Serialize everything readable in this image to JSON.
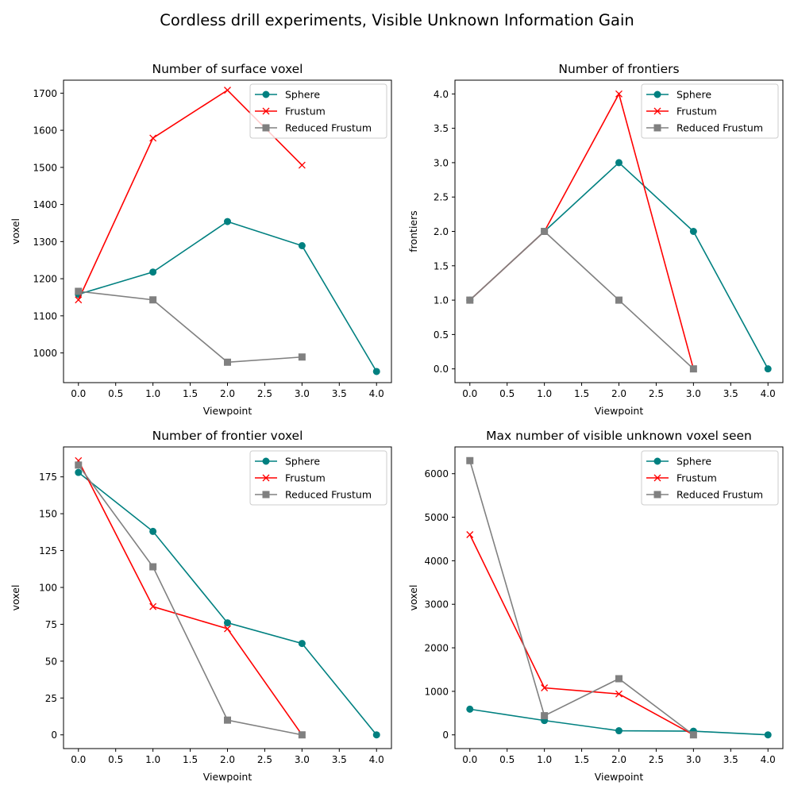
{
  "figure": {
    "title": "Cordless drill experiments, Visible Unknown Information Gain"
  },
  "colors": {
    "Sphere": "#008080",
    "Frustum": "#ff0000",
    "Reduced Frustum": "#808080"
  },
  "chart_data": [
    {
      "type": "line",
      "title": "Number of surface voxel",
      "xlabel": "Viewpoint",
      "ylabel": "voxel",
      "xlim": [
        -0.2,
        4.2
      ],
      "ylim": [
        920,
        1735
      ],
      "xticks": [
        0.0,
        0.5,
        1.0,
        1.5,
        2.0,
        2.5,
        3.0,
        3.5,
        4.0
      ],
      "yticks": [
        1000,
        1100,
        1200,
        1300,
        1400,
        1500,
        1600,
        1700
      ],
      "tick_format": "int",
      "legend_position": "top-right",
      "grid": false,
      "series": [
        {
          "name": "Sphere",
          "marker": "circle",
          "x": [
            0,
            1,
            2,
            3,
            4
          ],
          "y": [
            1158,
            1218,
            1354,
            1289,
            950
          ]
        },
        {
          "name": "Frustum",
          "marker": "x",
          "x": [
            0,
            1,
            2,
            3
          ],
          "y": [
            1143,
            1579,
            1708,
            1506
          ]
        },
        {
          "name": "Reduced Frustum",
          "marker": "square",
          "x": [
            0,
            1,
            2,
            3
          ],
          "y": [
            1166,
            1143,
            975,
            989
          ]
        }
      ]
    },
    {
      "type": "line",
      "title": "Number of frontiers",
      "xlabel": "Viewpoint",
      "ylabel": "frontiers",
      "xlim": [
        -0.2,
        4.2
      ],
      "ylim": [
        -0.2,
        4.2
      ],
      "xticks": [
        0.0,
        0.5,
        1.0,
        1.5,
        2.0,
        2.5,
        3.0,
        3.5,
        4.0
      ],
      "yticks": [
        0.0,
        0.5,
        1.0,
        1.5,
        2.0,
        2.5,
        3.0,
        3.5,
        4.0
      ],
      "tick_format": "1f",
      "legend_position": "top-right",
      "grid": false,
      "series": [
        {
          "name": "Sphere",
          "marker": "circle",
          "x": [
            0,
            1,
            2,
            3,
            4
          ],
          "y": [
            1,
            2,
            3,
            2,
            0
          ]
        },
        {
          "name": "Frustum",
          "marker": "x",
          "x": [
            0,
            1,
            2,
            3
          ],
          "y": [
            1,
            2,
            4,
            0
          ]
        },
        {
          "name": "Reduced Frustum",
          "marker": "square",
          "x": [
            0,
            1,
            2,
            3
          ],
          "y": [
            1,
            2,
            1,
            0
          ]
        }
      ]
    },
    {
      "type": "line",
      "title": "Number of frontier voxel",
      "xlabel": "Viewpoint",
      "ylabel": "voxel",
      "xlim": [
        -0.2,
        4.2
      ],
      "ylim": [
        -9.3,
        195.3
      ],
      "xticks": [
        0.0,
        0.5,
        1.0,
        1.5,
        2.0,
        2.5,
        3.0,
        3.5,
        4.0
      ],
      "yticks": [
        0,
        25,
        50,
        75,
        100,
        125,
        150,
        175
      ],
      "tick_format": "int",
      "legend_position": "top-right",
      "grid": false,
      "series": [
        {
          "name": "Sphere",
          "marker": "circle",
          "x": [
            0,
            1,
            2,
            3,
            4
          ],
          "y": [
            178,
            138,
            76,
            62,
            0
          ]
        },
        {
          "name": "Frustum",
          "marker": "x",
          "x": [
            0,
            1,
            2,
            3
          ],
          "y": [
            186,
            87,
            72,
            0
          ]
        },
        {
          "name": "Reduced Frustum",
          "marker": "square",
          "x": [
            0,
            1,
            2,
            3
          ],
          "y": [
            183,
            114,
            10,
            0
          ]
        }
      ]
    },
    {
      "type": "line",
      "title": "Max number of visible unknown voxel seen",
      "xlabel": "Viewpoint",
      "ylabel": "voxel",
      "xlim": [
        -0.2,
        4.2
      ],
      "ylim": [
        -315,
        6615
      ],
      "xticks": [
        0.0,
        0.5,
        1.0,
        1.5,
        2.0,
        2.5,
        3.0,
        3.5,
        4.0
      ],
      "yticks": [
        0,
        1000,
        2000,
        3000,
        4000,
        5000,
        6000
      ],
      "tick_format": "int",
      "legend_position": "top-right",
      "grid": false,
      "series": [
        {
          "name": "Sphere",
          "marker": "circle",
          "x": [
            0,
            1,
            2,
            3,
            4
          ],
          "y": [
            590,
            330,
            95,
            85,
            0
          ]
        },
        {
          "name": "Frustum",
          "marker": "x",
          "x": [
            0,
            1,
            2,
            3
          ],
          "y": [
            4600,
            1080,
            940,
            0
          ]
        },
        {
          "name": "Reduced Frustum",
          "marker": "square",
          "x": [
            0,
            1,
            2,
            3
          ],
          "y": [
            6300,
            440,
            1290,
            0
          ]
        }
      ]
    }
  ]
}
